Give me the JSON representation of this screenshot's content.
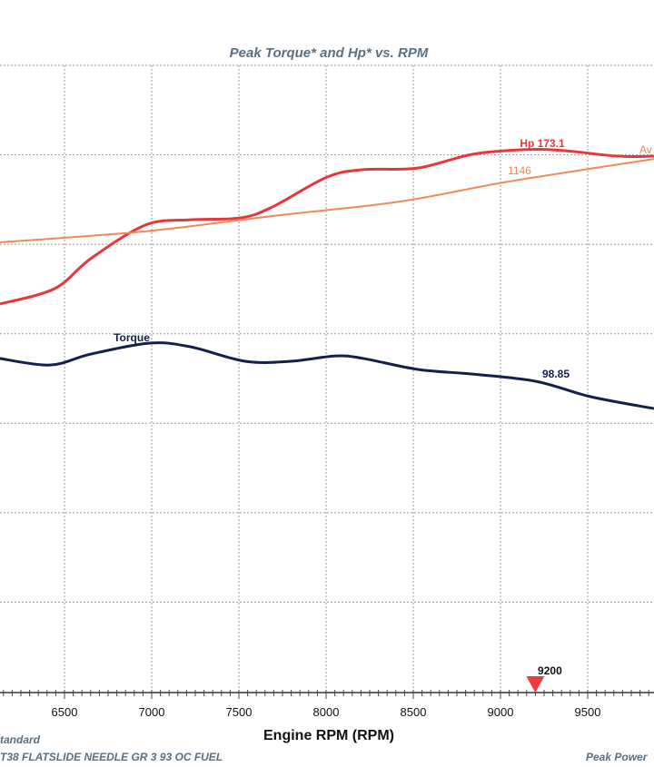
{
  "chart_data": {
    "type": "line",
    "title": "Peak Torque* and Hp* vs. RPM",
    "xlabel": "Engine RPM (RPM)",
    "ylabel": "",
    "xlim": [
      6130,
      9880
    ],
    "ylim": [
      0,
      200
    ],
    "grid": true,
    "x_ticks": [
      "6500",
      "7000",
      "7500",
      "8000",
      "8500",
      "9000",
      "9500"
    ],
    "series": [
      {
        "name": "Hp",
        "color": "#e8363c",
        "label": "Hp 173.1",
        "x": [
          6130,
          6443,
          6651,
          6964,
          7224,
          7510,
          7693,
          8005,
          8214,
          8526,
          8839,
          9151,
          9359,
          9672,
          9880
        ],
        "y": [
          123.8,
          128.7,
          138.3,
          149.0,
          150.7,
          151.3,
          154.8,
          164.3,
          166.7,
          167.2,
          171.6,
          173.1,
          172.8,
          171.0,
          171.0
        ]
      },
      {
        "name": "Avg",
        "color": "#f08a5a",
        "label": "1146",
        "edge_label": "Av",
        "x": [
          6130,
          6964,
          7693,
          8422,
          9047,
          9880
        ],
        "y": [
          143.5,
          147.0,
          151.9,
          156.5,
          162.9,
          170.1
        ]
      },
      {
        "name": "Torque",
        "color": "#13204a",
        "label": "Torque",
        "value_label": "98.85",
        "x": [
          6130,
          6417,
          6651,
          6990,
          7224,
          7536,
          7797,
          8057,
          8214,
          8526,
          8839,
          9203,
          9516,
          9880
        ],
        "y": [
          106.4,
          104.3,
          107.8,
          111.3,
          110.1,
          105.5,
          105.5,
          107.2,
          106.4,
          102.9,
          101.4,
          99.1,
          94.2,
          90.4
        ]
      }
    ],
    "marker": {
      "rpm": 9200,
      "label": "9200",
      "color": "#ef3b3b"
    },
    "footer": {
      "left1": "Standard",
      "left2": "T38 FLATSLIDE NEEDLE GR 3 93 OC FUEL",
      "right": "Peak Power"
    }
  }
}
